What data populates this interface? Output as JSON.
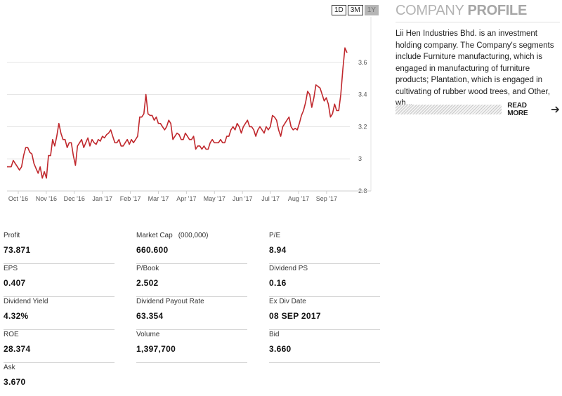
{
  "range_buttons": [
    {
      "label": "1D",
      "active": false
    },
    {
      "label": "3M",
      "active": false
    },
    {
      "label": "1Y",
      "active": true
    }
  ],
  "profile": {
    "title_light": "COMPANY ",
    "title_strong": "PROFILE",
    "text": "Lii Hen Industries Bhd. is an investment holding company. The Company's segments include Furniture manufacturing, which is engaged in manufacturing of furniture products; Plantation, which is engaged in cultivating of rubber wood trees, and Other, wh...",
    "read_more": "READ MORE"
  },
  "stats": [
    {
      "label": "Profit",
      "value": "73.871"
    },
    {
      "label": "Market Cap",
      "unit": "(000,000)",
      "value": "660.600"
    },
    {
      "label": "P/E",
      "value": "8.94"
    },
    {
      "label": "EPS",
      "value": "0.407"
    },
    {
      "label": "P/Book",
      "value": "2.502"
    },
    {
      "label": "Dividend PS",
      "value": "0.16"
    },
    {
      "label": "Dividend Yield",
      "value": "4.32%"
    },
    {
      "label": "Dividend Payout Rate",
      "value": "63.354"
    },
    {
      "label": "Ex Div Date",
      "value": "08 SEP 2017"
    },
    {
      "label": "ROE",
      "value": "28.374"
    },
    {
      "label": "Volume",
      "value": "1,397,700"
    },
    {
      "label": "Bid",
      "value": "3.660"
    },
    {
      "label": "Ask",
      "value": "3.670"
    }
  ],
  "chart_data": {
    "type": "line",
    "x_labels": [
      "Oct '16",
      "Nov '16",
      "Dec '16",
      "Jan '17",
      "Feb '17",
      "Mar '17",
      "Apr '17",
      "May '17",
      "Jun '17",
      "Jul '17",
      "Aug '17",
      "Sep '17"
    ],
    "y_ticks": [
      "2.8",
      "3",
      "3.2",
      "3.4",
      "3.6"
    ],
    "ylim": [
      2.8,
      3.8
    ],
    "line_color": "#c0282d",
    "values": [
      2.95,
      2.95,
      2.95,
      2.99,
      2.97,
      2.95,
      2.93,
      2.95,
      3.02,
      3.07,
      3.07,
      3.04,
      3.03,
      2.97,
      2.94,
      2.91,
      2.95,
      2.88,
      2.92,
      2.88,
      3.02,
      3.02,
      3.12,
      3.08,
      3.14,
      3.22,
      3.16,
      3.12,
      3.12,
      3.07,
      3.1,
      3.1,
      3.02,
      2.96,
      3.08,
      3.1,
      3.12,
      3.07,
      3.1,
      3.13,
      3.08,
      3.12,
      3.1,
      3.09,
      3.12,
      3.11,
      3.14,
      3.13,
      3.15,
      3.16,
      3.18,
      3.14,
      3.1,
      3.1,
      3.12,
      3.08,
      3.08,
      3.1,
      3.12,
      3.09,
      3.12,
      3.1,
      3.12,
      3.14,
      3.26,
      3.26,
      3.28,
      3.4,
      3.28,
      3.27,
      3.27,
      3.24,
      3.26,
      3.22,
      3.22,
      3.2,
      3.18,
      3.2,
      3.24,
      3.22,
      3.12,
      3.14,
      3.16,
      3.15,
      3.12,
      3.12,
      3.16,
      3.14,
      3.12,
      3.12,
      3.14,
      3.06,
      3.08,
      3.08,
      3.06,
      3.08,
      3.06,
      3.06,
      3.1,
      3.12,
      3.1,
      3.1,
      3.1,
      3.12,
      3.1,
      3.1,
      3.14,
      3.14,
      3.18,
      3.2,
      3.18,
      3.22,
      3.2,
      3.16,
      3.2,
      3.22,
      3.24,
      3.2,
      3.2,
      3.18,
      3.14,
      3.18,
      3.2,
      3.18,
      3.16,
      3.2,
      3.18,
      3.2,
      3.27,
      3.26,
      3.24,
      3.18,
      3.14,
      3.2,
      3.22,
      3.24,
      3.26,
      3.2,
      3.18,
      3.19,
      3.18,
      3.22,
      3.27,
      3.3,
      3.35,
      3.42,
      3.4,
      3.32,
      3.38,
      3.46,
      3.45,
      3.44,
      3.4,
      3.36,
      3.38,
      3.34,
      3.26,
      3.28,
      3.34,
      3.3,
      3.3,
      3.4,
      3.56,
      3.69,
      3.66
    ]
  }
}
